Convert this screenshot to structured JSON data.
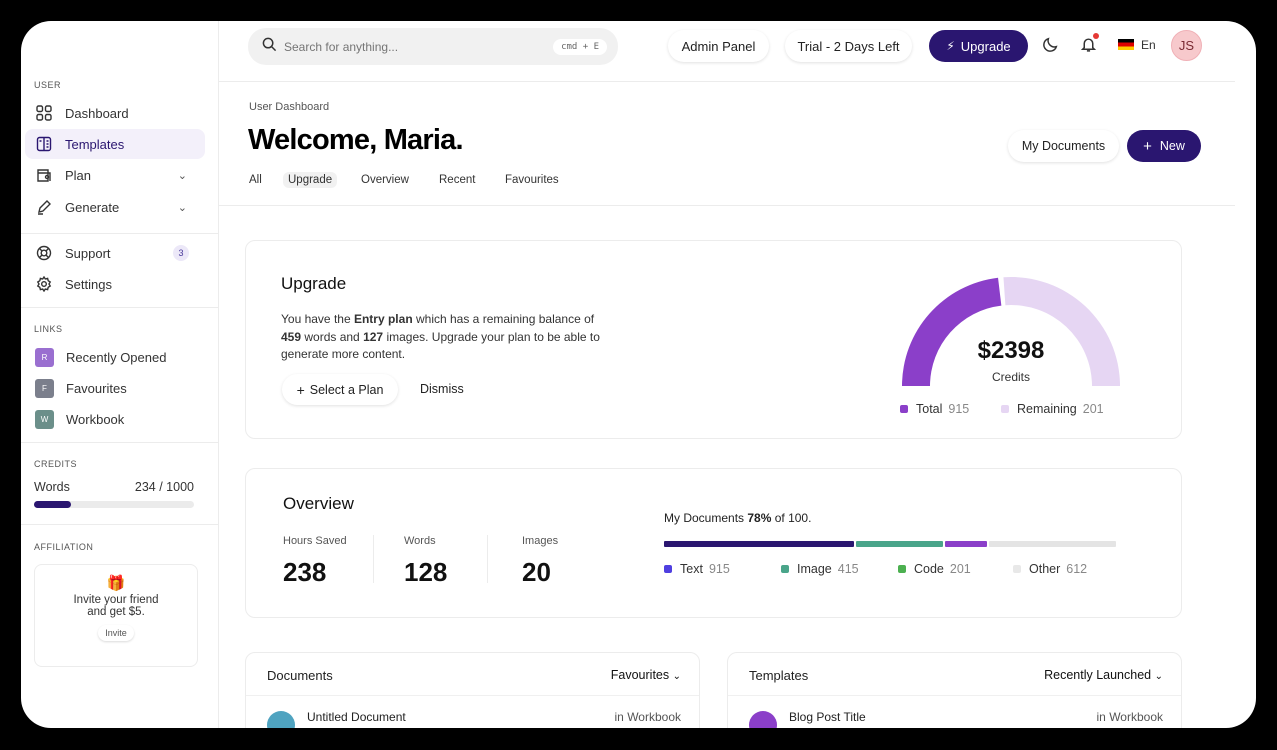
{
  "search": {
    "placeholder": "Search for anything...",
    "shortcut": "cmd + E"
  },
  "header": {
    "admin_panel": "Admin Panel",
    "trial": "Trial - 2 Days Left",
    "upgrade": "Upgrade",
    "language": "En",
    "avatar_initials": "JS"
  },
  "sidebar": {
    "user_label": "USER",
    "items": [
      {
        "label": "Dashboard",
        "icon": "grid-icon"
      },
      {
        "label": "Templates",
        "icon": "template-icon",
        "active": true
      },
      {
        "label": "Plan",
        "icon": "wallet-icon"
      },
      {
        "label": "Generate",
        "icon": "pen-icon"
      },
      {
        "label": "Support",
        "icon": "lifebuoy-icon",
        "badge": "3"
      },
      {
        "label": "Settings",
        "icon": "gear-icon"
      }
    ],
    "links_label": "LINKS",
    "links": [
      {
        "label": "Recently Opened",
        "initial": "R",
        "color": "#9a6fd0"
      },
      {
        "label": "Favourites",
        "initial": "F",
        "color": "#7b7f8c"
      },
      {
        "label": "Workbook",
        "initial": "W",
        "color": "#6b8f8a"
      }
    ],
    "credits_label": "CREDITS",
    "credits_name": "Words",
    "credits_value": "234 / 1000",
    "credits_percent": 23.4,
    "affiliation_label": "AFFILIATION",
    "invite_text1": "Invite your friend",
    "invite_text2": "and get $5.",
    "invite_button": "Invite"
  },
  "page": {
    "breadcrumb": "User Dashboard",
    "title": "Welcome, Maria.",
    "my_documents": "My Documents",
    "new": "New",
    "tabs": [
      {
        "label": "All"
      },
      {
        "label": "Upgrade",
        "active": true
      },
      {
        "label": "Overview"
      },
      {
        "label": "Recent"
      },
      {
        "label": "Favourites"
      }
    ]
  },
  "upgrade": {
    "title": "Upgrade",
    "t1": "You have the ",
    "plan": "Entry plan",
    "t2": " which has a remaining balance of",
    "words": "459",
    "t3": " words and ",
    "images": "127",
    "t4": " images. Upgrade your plan to be able to",
    "t5": "generate more content.",
    "select": "Select a Plan",
    "dismiss": "Dismiss",
    "gauge": {
      "amount": "$2398",
      "label": "Credits",
      "fill_percent": 47,
      "total_label": "Total",
      "total": "915",
      "remaining_label": "Remaining",
      "remaining": "201",
      "colors": {
        "total": "#8b3fc9",
        "remaining": "#e6d6f3"
      }
    }
  },
  "overview": {
    "title": "Overview",
    "stats": [
      {
        "label": "Hours Saved",
        "value": "238"
      },
      {
        "label": "Words",
        "value": "128"
      },
      {
        "label": "Images",
        "value": "20"
      }
    ],
    "docs_t1": "My Documents ",
    "docs_pct": "78%",
    "docs_t2": " of 100.",
    "segments": [
      {
        "label": "Text",
        "value": 915,
        "color": "#2a1670"
      },
      {
        "label": "Image",
        "value": 415,
        "color": "#4aa58a"
      },
      {
        "label": "Code",
        "value": 201,
        "color": "#8b3fc9"
      },
      {
        "label": "Other",
        "value": 612,
        "color": "#e4e4e4"
      }
    ],
    "legend_colors": [
      "#4f3fe0",
      "#4aa58a",
      "#4cb050",
      "#e8e8e8"
    ]
  },
  "documents": {
    "title": "Documents",
    "filter": "Favourites",
    "row_title": "Untitled Document",
    "row_loc": "in Workbook"
  },
  "templates": {
    "title": "Templates",
    "filter": "Recently Launched",
    "row_title": "Blog Post Title",
    "row_loc": "in Workbook"
  }
}
